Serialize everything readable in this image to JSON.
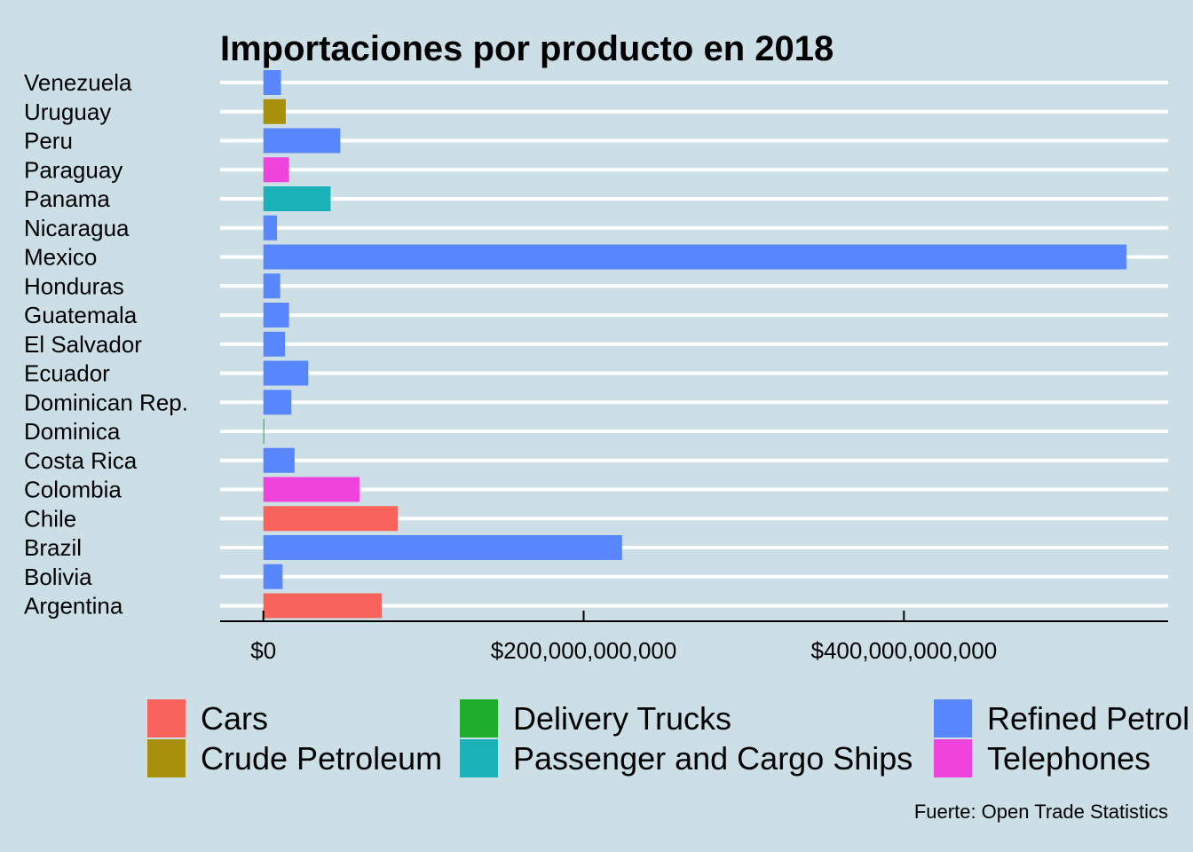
{
  "chart_data": {
    "type": "bar",
    "orientation": "horizontal",
    "title": "Importaciones por producto en 2018",
    "caption": "Fuerte: Open Trade Statistics",
    "xlabel": "",
    "ylabel": "",
    "xlim": [
      -27000000000,
      565000000000
    ],
    "x_ticks": [
      0,
      200000000000,
      400000000000
    ],
    "x_tick_labels": [
      "$0",
      "$200,000,000,000",
      "$400,000,000,000"
    ],
    "grid": "horizontal major lines (white)",
    "legend_position": "bottom",
    "categories": [
      "Venezuela",
      "Uruguay",
      "Peru",
      "Paraguay",
      "Panama",
      "Nicaragua",
      "Mexico",
      "Honduras",
      "Guatemala",
      "El Salvador",
      "Ecuador",
      "Dominican Rep.",
      "Dominica",
      "Costa Rica",
      "Colombia",
      "Chile",
      "Brazil",
      "Bolivia",
      "Argentina"
    ],
    "values": [
      11000000000,
      14000000000,
      48000000000,
      16000000000,
      42000000000,
      8500000000,
      539000000000,
      10500000000,
      16000000000,
      13500000000,
      28000000000,
      17500000000,
      400000000,
      19500000000,
      60000000000,
      84000000000,
      224000000000,
      12000000000,
      74000000000
    ],
    "products": [
      "Refined Petroleum",
      "Crude Petroleum",
      "Refined Petroleum",
      "Telephones",
      "Passenger and Cargo Ships",
      "Refined Petroleum",
      "Refined Petroleum",
      "Refined Petroleum",
      "Refined Petroleum",
      "Refined Petroleum",
      "Refined Petroleum",
      "Refined Petroleum",
      "Delivery Trucks",
      "Refined Petroleum",
      "Telephones",
      "Cars",
      "Refined Petroleum",
      "Refined Petroleum",
      "Cars"
    ],
    "legend": [
      {
        "name": "Cars",
        "color": "#f8635c"
      },
      {
        "name": "Crude Petroleum",
        "color": "#a8900a"
      },
      {
        "name": "Delivery Trucks",
        "color": "#1fad2e"
      },
      {
        "name": "Passenger and Cargo Ships",
        "color": "#1ab2b8"
      },
      {
        "name": "Refined Petrol",
        "color": "#5886ff"
      },
      {
        "name": "Telephones",
        "color": "#ee44dc"
      }
    ],
    "colors": {
      "Cars": "#f8635c",
      "Crude Petroleum": "#a8900a",
      "Delivery Trucks": "#1fad2e",
      "Passenger and Cargo Ships": "#1ab2b8",
      "Refined Petroleum": "#5886ff",
      "Telephones": "#ee44dc"
    },
    "background": "#cddfe6"
  }
}
